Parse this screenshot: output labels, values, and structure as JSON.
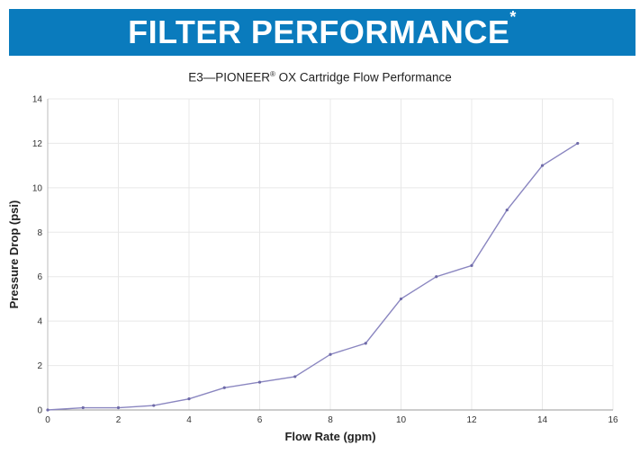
{
  "header": {
    "title": "FILTER PERFORMANCE",
    "title_mark": "*",
    "banner_color": "#0a7bbd"
  },
  "chart_subtitle": {
    "prefix": "E3—PIONEER",
    "registered": "®",
    "suffix": " OX Cartridge Flow Performance"
  },
  "chart_data": {
    "type": "line",
    "xlabel": "Flow Rate (gpm)",
    "ylabel": "Pressure Drop (psi)",
    "xlim": [
      0,
      16
    ],
    "ylim": [
      0,
      14
    ],
    "xticks": [
      0,
      2,
      4,
      6,
      8,
      10,
      12,
      14,
      16
    ],
    "yticks": [
      0,
      2,
      4,
      6,
      8,
      10,
      12,
      14
    ],
    "grid": true,
    "line_color": "#8a86c0",
    "series": [
      {
        "x": [
          0,
          1,
          2,
          3,
          4,
          5,
          6,
          7,
          8,
          9,
          10,
          11,
          12,
          13,
          14,
          15
        ],
        "values": [
          0,
          0.1,
          0.1,
          0.2,
          0.5,
          1.0,
          1.25,
          1.5,
          2.5,
          3.0,
          5.0,
          6.0,
          6.5,
          9.0,
          11.0,
          12.0
        ]
      }
    ]
  }
}
